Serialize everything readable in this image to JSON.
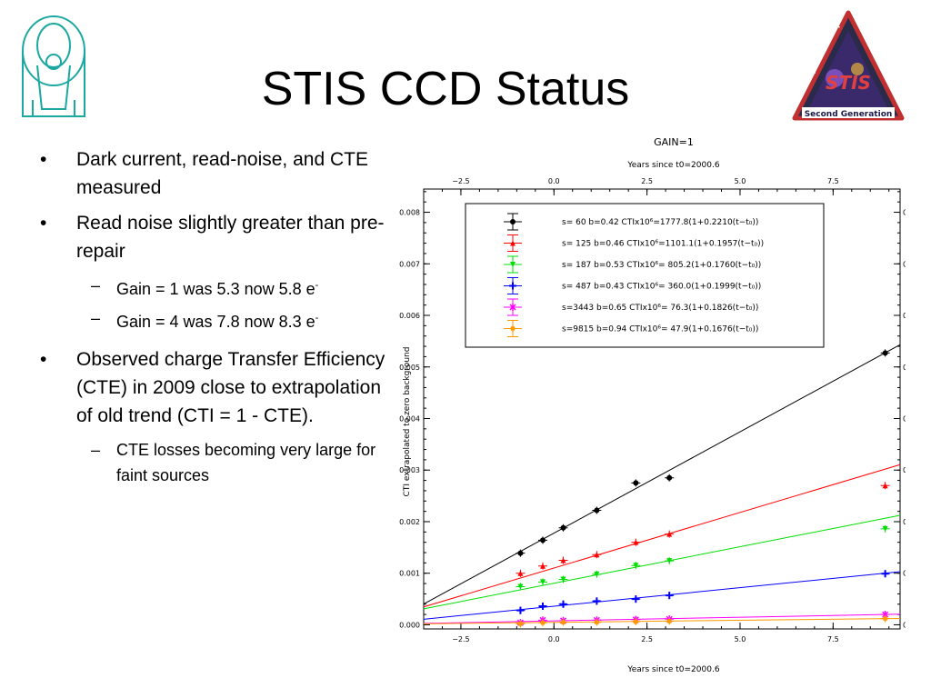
{
  "slide": {
    "title": "STIS CCD Status",
    "bullets": [
      {
        "text": "Dark current, read-noise, and CTE measured",
        "level": 1
      },
      {
        "text": "Read noise slightly greater than pre-repair",
        "level": 1
      },
      {
        "text": "Gain = 1 was 5.3 now 5.8 e",
        "sup": "-",
        "level": 2
      },
      {
        "text": "Gain = 4 was 7.8 now 8.3 e",
        "sup": "-",
        "level": 2
      },
      {
        "text": "Observed charge Transfer Efficiency (CTE) in 2009 close to  extrapolation of old trend  (CTI = 1 - CTE).",
        "level": 1
      },
      {
        "text": "CTE losses becoming very large for faint sources",
        "level": 2
      }
    ],
    "bullet_mark": "•",
    "sub_mark": "–",
    "logo_text": {
      "top": "Space Telescope",
      "right": "Imaging Spectrograph",
      "bottom": "Second Generation",
      "center": "STIS"
    }
  },
  "chart_data": {
    "type": "scatter",
    "title": "GAIN=1",
    "top_axis_label": "Years since t0=2000.6",
    "xlabel": "Years since t0=2000.6",
    "ylabel": "CTI extrapolated to zero background",
    "xlim": [
      -3.5,
      9.3
    ],
    "ylim": [
      -8e-05,
      0.00845
    ],
    "x_ticks": [
      -2.5,
      0.0,
      2.5,
      5.0,
      7.5
    ],
    "x_tick_labels": [
      "−2.5",
      "0.0",
      "2.5",
      "5.0",
      "7.5"
    ],
    "y_ticks": [
      0.0,
      0.001,
      0.002,
      0.003,
      0.004,
      0.005,
      0.006,
      0.007,
      0.008
    ],
    "y_tick_labels": [
      "0.000",
      "0.001",
      "0.002",
      "0.003",
      "0.004",
      "0.005",
      "0.006",
      "0.007",
      "0.008"
    ],
    "legend_placement": "top-left inside",
    "fit_model": "CTI = A·(1 + B·(t − t0))",
    "x": [
      -0.9,
      -0.3,
      0.25,
      1.15,
      2.2,
      3.1,
      8.9
    ],
    "series": [
      {
        "name": "s=  60",
        "legend": "s=  60 b=0.42 CTIx10⁶=1777.8(1+0.2210(t−t₀))",
        "color": "#000000",
        "marker": "circle",
        "A": 0.0017778,
        "B": 0.221,
        "values": [
          0.00139,
          0.00164,
          0.00188,
          0.00222,
          0.00275,
          0.00285,
          0.00527
        ]
      },
      {
        "name": "s= 125",
        "legend": "s= 125 b=0.46 CTIx10⁶=1101.1(1+0.1957(t−t₀))",
        "color": "#ff0000",
        "marker": "triangle-up",
        "A": 0.0011011,
        "B": 0.1957,
        "values": [
          0.001,
          0.00114,
          0.00125,
          0.00136,
          0.0016,
          0.00176,
          0.0027
        ]
      },
      {
        "name": "s= 187",
        "legend": "s= 187 b=0.53 CTIx10⁶= 805.2(1+0.1760(t−t₀))",
        "color": "#00dd00",
        "marker": "triangle-down",
        "A": 0.0008052,
        "B": 0.176,
        "values": [
          0.00074,
          0.00083,
          0.00088,
          0.00098,
          0.00115,
          0.00124,
          0.00186
        ]
      },
      {
        "name": "s= 487",
        "legend": "s= 487 b=0.43 CTIx10⁶= 360.0(1+0.1999(t−t₀))",
        "color": "#0000ff",
        "marker": "cross",
        "A": 0.00036,
        "B": 0.1999,
        "values": [
          0.00028,
          0.00036,
          0.0004,
          0.00046,
          0.0005,
          0.00057,
          0.00099
        ]
      },
      {
        "name": "s=3443",
        "legend": "s=3443 b=0.65 CTIx10⁶=  76.3(1+0.1826(t−t₀))",
        "color": "#ff00ff",
        "marker": "star",
        "A": 7.63e-05,
        "B": 0.1826,
        "values": [
          4e-05,
          9e-05,
          8e-05,
          9e-05,
          0.0001,
          0.00011,
          0.0002
        ]
      },
      {
        "name": "s=9815",
        "legend": "s=9815 b=0.94 CTIx10⁶=  47.9(1+0.1676(t−t₀))",
        "color": "#ff9900",
        "marker": "asterisk",
        "A": 4.79e-05,
        "B": 0.1676,
        "values": [
          2e-05,
          4e-05,
          5e-05,
          5e-05,
          6e-05,
          7e-05,
          0.00012
        ]
      }
    ]
  }
}
